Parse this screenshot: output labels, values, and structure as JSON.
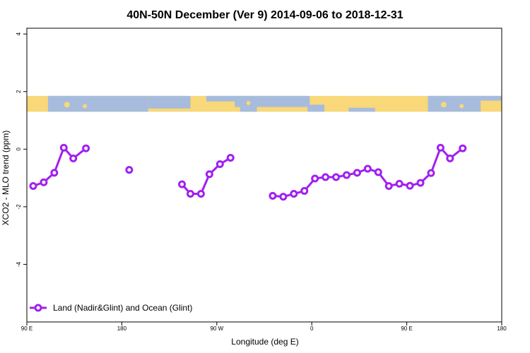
{
  "chart_data": {
    "type": "line",
    "title": "40N-50N December (Ver 9)   2014-09-06 to 2018-12-31",
    "xlabel": "Longitude (deg E)",
    "ylabel": "XCO2 - MLO trend (ppm)",
    "xlim": [
      90,
      540
    ],
    "ylim": [
      -6,
      4.2
    ],
    "x_ticks": [
      {
        "value": 90,
        "label": "90 E"
      },
      {
        "value": 180,
        "label": "180"
      },
      {
        "value": 270,
        "label": "90 W"
      },
      {
        "value": 360,
        "label": "0"
      },
      {
        "value": 450,
        "label": "90 E"
      },
      {
        "value": 540,
        "label": "180"
      }
    ],
    "y_ticks": [
      {
        "value": 4,
        "label": "4"
      },
      {
        "value": 2,
        "label": "2"
      },
      {
        "value": 0,
        "label": "0"
      },
      {
        "value": -2,
        "label": "-2"
      },
      {
        "value": -4,
        "label": "-4"
      }
    ],
    "map_band": {
      "ymin": 1.3,
      "ymax": 1.85,
      "land_color": "#F8D878",
      "ocean_color": "#A7BCDD"
    },
    "series": [
      {
        "name": "Land (Nadir&Glint) and Ocean (Glint)",
        "color": "#A020F0",
        "segments": [
          [
            [
              96,
              -1.28
            ],
            [
              106,
              -1.15
            ],
            [
              116,
              -0.82
            ],
            [
              125,
              0.05
            ],
            [
              134,
              -0.32
            ],
            [
              146,
              0.03
            ]
          ],
          [
            [
              187,
              -0.72
            ]
          ],
          [
            [
              237,
              -1.22
            ],
            [
              245,
              -1.55
            ],
            [
              255,
              -1.55
            ],
            [
              263,
              -0.87
            ],
            [
              273,
              -0.52
            ],
            [
              283,
              -0.3
            ]
          ],
          [
            [
              323,
              -1.62
            ],
            [
              333,
              -1.65
            ],
            [
              343,
              -1.55
            ],
            [
              353,
              -1.45
            ],
            [
              363,
              -1.02
            ],
            [
              373,
              -0.97
            ],
            [
              383,
              -0.97
            ],
            [
              393,
              -0.9
            ],
            [
              403,
              -0.82
            ],
            [
              413,
              -0.68
            ],
            [
              423,
              -0.8
            ],
            [
              433,
              -1.28
            ],
            [
              443,
              -1.2
            ],
            [
              453,
              -1.27
            ],
            [
              463,
              -1.17
            ],
            [
              473,
              -0.83
            ],
            [
              482,
              0.05
            ],
            [
              491,
              -0.32
            ],
            [
              503,
              0.03
            ]
          ]
        ]
      }
    ],
    "legend": {
      "position": "bottom-left"
    }
  }
}
